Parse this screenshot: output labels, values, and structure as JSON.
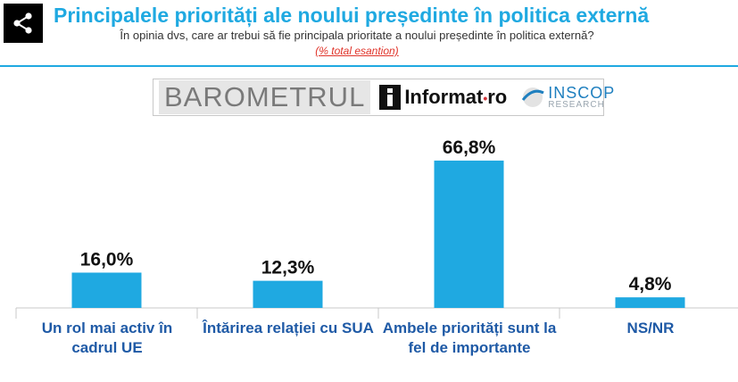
{
  "header": {
    "title": "Principalele priorități ale noului președinte în politica externă",
    "subtitle": "În opinia dvs, care ar trebui să fie principala prioritate a noului președinte în politica externă?",
    "note": "(% total esantion)",
    "share_icon": "share-icon"
  },
  "logos": {
    "barometrul": "BAROMETRUL",
    "informat": "Informat",
    "informat_suffix": "ro",
    "inscop": "INSCOP",
    "research": "RESEARCH"
  },
  "colors": {
    "accent": "#1fa9e1",
    "bar": "#1fa9e1",
    "category_text": "#1f5aa6",
    "note": "#e0342a"
  },
  "chart_data": {
    "type": "bar",
    "categories": [
      "Un rol mai activ în cadrul UE",
      "Întărirea relației cu SUA",
      "Ambele priorități sunt la fel de importante",
      "NS/NR"
    ],
    "values": [
      16.0,
      12.3,
      66.8,
      4.8
    ],
    "value_labels": [
      "16,0%",
      "12,3%",
      "66,8%",
      "4,8%"
    ],
    "ylim": [
      0,
      70
    ],
    "grid": false,
    "title": "",
    "xlabel": "",
    "ylabel": ""
  }
}
